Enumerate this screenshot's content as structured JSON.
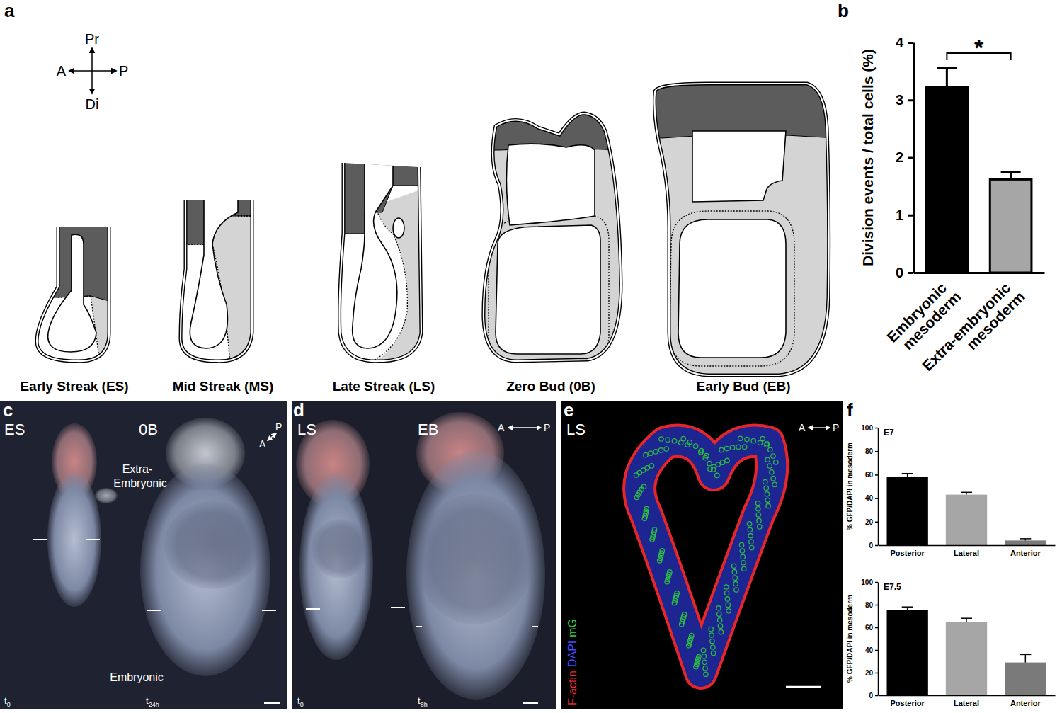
{
  "figure": {
    "panel_labels": [
      "a",
      "b",
      "c",
      "d",
      "e",
      "f"
    ],
    "a": {
      "compass": {
        "proximal": "Pr",
        "distal": "Di",
        "anterior": "A",
        "posterior": "P"
      },
      "stages": [
        "Early Streak (ES)",
        "Mid Streak (MS)",
        "Late Streak (LS)",
        "Zero Bud (0B)",
        "Early Bud (EB)"
      ]
    },
    "c": {
      "stages": [
        "ES",
        "0B"
      ],
      "axis": [
        "A",
        "P"
      ],
      "extra_embryonic": [
        "Extra-",
        "Embryonic"
      ],
      "embryonic": "Embryonic",
      "times": [
        [
          "t",
          "0"
        ],
        [
          "t",
          "24h"
        ]
      ]
    },
    "d": {
      "stages": [
        "LS",
        "EB"
      ],
      "axis": [
        "A",
        "P"
      ],
      "times": [
        [
          "t",
          "0"
        ],
        [
          "t",
          "8h"
        ]
      ]
    },
    "e": {
      "stage": "LS",
      "axis": [
        "A",
        "P"
      ],
      "channels": [
        {
          "name": "F-actin",
          "color": "#e8262a"
        },
        {
          "name": "DAPI",
          "color": "#4a4aff"
        },
        {
          "name": "mG",
          "color": "#2fd03a"
        }
      ]
    }
  },
  "chart_data": [
    {
      "type": "bar",
      "y_label": "Division events / total cells (%)",
      "categories": [
        "Embryonic mesoderm",
        "Extra-embryonic mesoderm"
      ],
      "values": [
        3.23,
        1.62
      ],
      "errors": [
        0.33,
        0.13
      ],
      "colors": [
        "#000000",
        "#a6a6a6"
      ],
      "ylim": [
        0,
        4
      ],
      "yticks": [
        0,
        1,
        2,
        3,
        4
      ],
      "annotation": "*"
    },
    {
      "type": "bar",
      "title": "E7",
      "y_label": "% GFP/DAPI in mesoderm",
      "categories": [
        "Posterior",
        "Lateral",
        "Anterior"
      ],
      "values": [
        58,
        43,
        4
      ],
      "errors": [
        3,
        2,
        1.5
      ],
      "colors": [
        "#000000",
        "#a6a6a6",
        "#7a7a7a"
      ],
      "ylim": [
        0,
        100
      ],
      "yticks": [
        0,
        20,
        40,
        60,
        80,
        100
      ]
    },
    {
      "type": "bar",
      "title": "E7.5",
      "y_label": "% GFP/DAPI in mesoderm",
      "categories": [
        "Posterior",
        "Lateral",
        "Anterior"
      ],
      "values": [
        75,
        65,
        29
      ],
      "errors": [
        3,
        3,
        7
      ],
      "colors": [
        "#000000",
        "#a6a6a6",
        "#7a7a7a"
      ],
      "ylim": [
        0,
        100
      ],
      "yticks": [
        0,
        20,
        40,
        60,
        80,
        100
      ]
    }
  ]
}
